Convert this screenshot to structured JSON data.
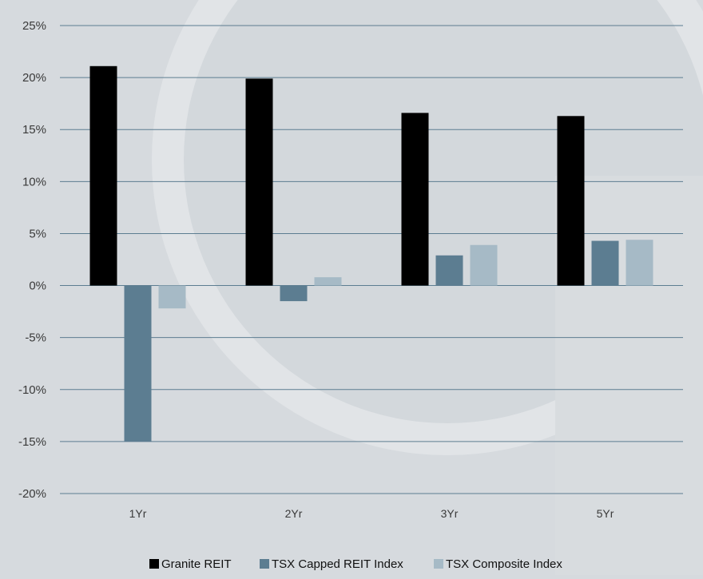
{
  "chart_data": {
    "type": "bar",
    "categories": [
      "1Yr",
      "2Yr",
      "3Yr",
      "5Yr"
    ],
    "series": [
      {
        "name": "Granite REIT",
        "values": [
          21.1,
          19.9,
          16.6,
          16.3
        ],
        "color": "#000000"
      },
      {
        "name": "TSX Capped REIT Index",
        "values": [
          -15.0,
          -1.5,
          2.9,
          4.3
        ],
        "color": "#5c7d91"
      },
      {
        "name": "TSX Composite Index",
        "values": [
          -2.2,
          0.8,
          3.9,
          4.4
        ],
        "color": "#a6bac6"
      }
    ],
    "y_ticks": [
      "25%",
      "20%",
      "15%",
      "10%",
      "5%",
      "0%",
      "-5%",
      "-10%",
      "-15%",
      "-20%"
    ],
    "ylim": [
      -20,
      25
    ],
    "y_step": 5,
    "grid": true,
    "legend_position": "bottom-center",
    "title": "",
    "xlabel": "",
    "ylabel": ""
  },
  "colors": {
    "background": "#d6dade",
    "gridline": "#5c7d91"
  }
}
